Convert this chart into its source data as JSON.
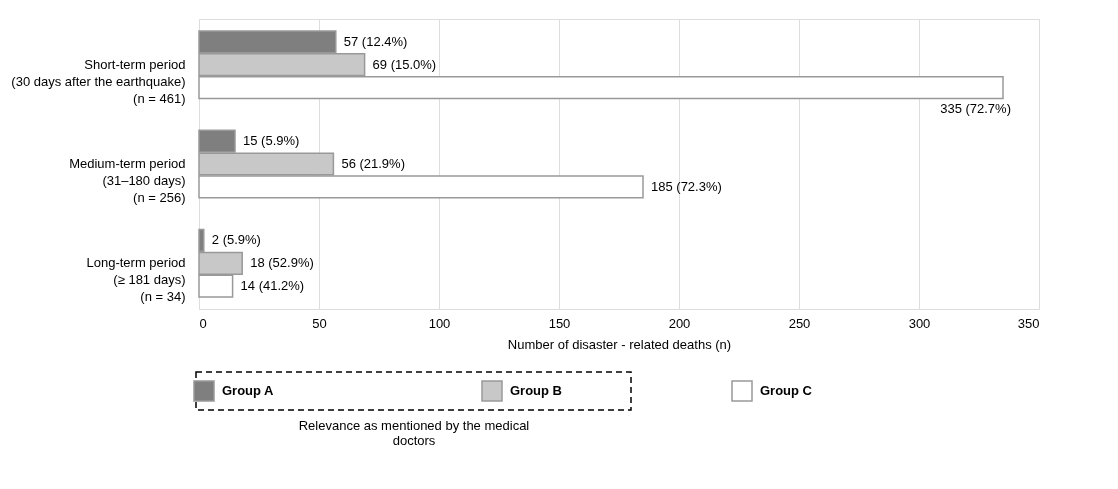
{
  "chart_data": {
    "type": "bar",
    "orientation": "horizontal",
    "categories": [
      "Short-term period\n(30 days after the earthquake)\n(n = 461)",
      "Medium-term period\n(31–180 days)\n(n = 256)",
      "Long-term period\n(≥ 181 days)\n(n = 34)"
    ],
    "series": [
      {
        "name": "Group A",
        "color": "#7f7f7f",
        "values": [
          57,
          15,
          2
        ],
        "value_labels": [
          "57 (12.4%)",
          "15 (5.9%)",
          "2 (5.9%)"
        ]
      },
      {
        "name": "Group B",
        "color": "#c8c8c8",
        "values": [
          69,
          56,
          18
        ],
        "value_labels": [
          "69 (15.0%)",
          "56 (21.9%)",
          "18 (52.9%)"
        ]
      },
      {
        "name": "Group C",
        "color": "#ffffff",
        "values": [
          335,
          185,
          14
        ],
        "value_labels": [
          "335 (72.7%)",
          "185 (72.3%)",
          "14 (41.2%)"
        ]
      }
    ],
    "xlabel": "Number of disaster - related deaths (n)",
    "xlim": [
      0,
      350
    ],
    "xticks": [
      0,
      50,
      100,
      150,
      200,
      250,
      300,
      350
    ],
    "grid": "x",
    "legend": "bottom",
    "annotations": [
      "Relevance as mentioned by the medical doctors"
    ]
  }
}
